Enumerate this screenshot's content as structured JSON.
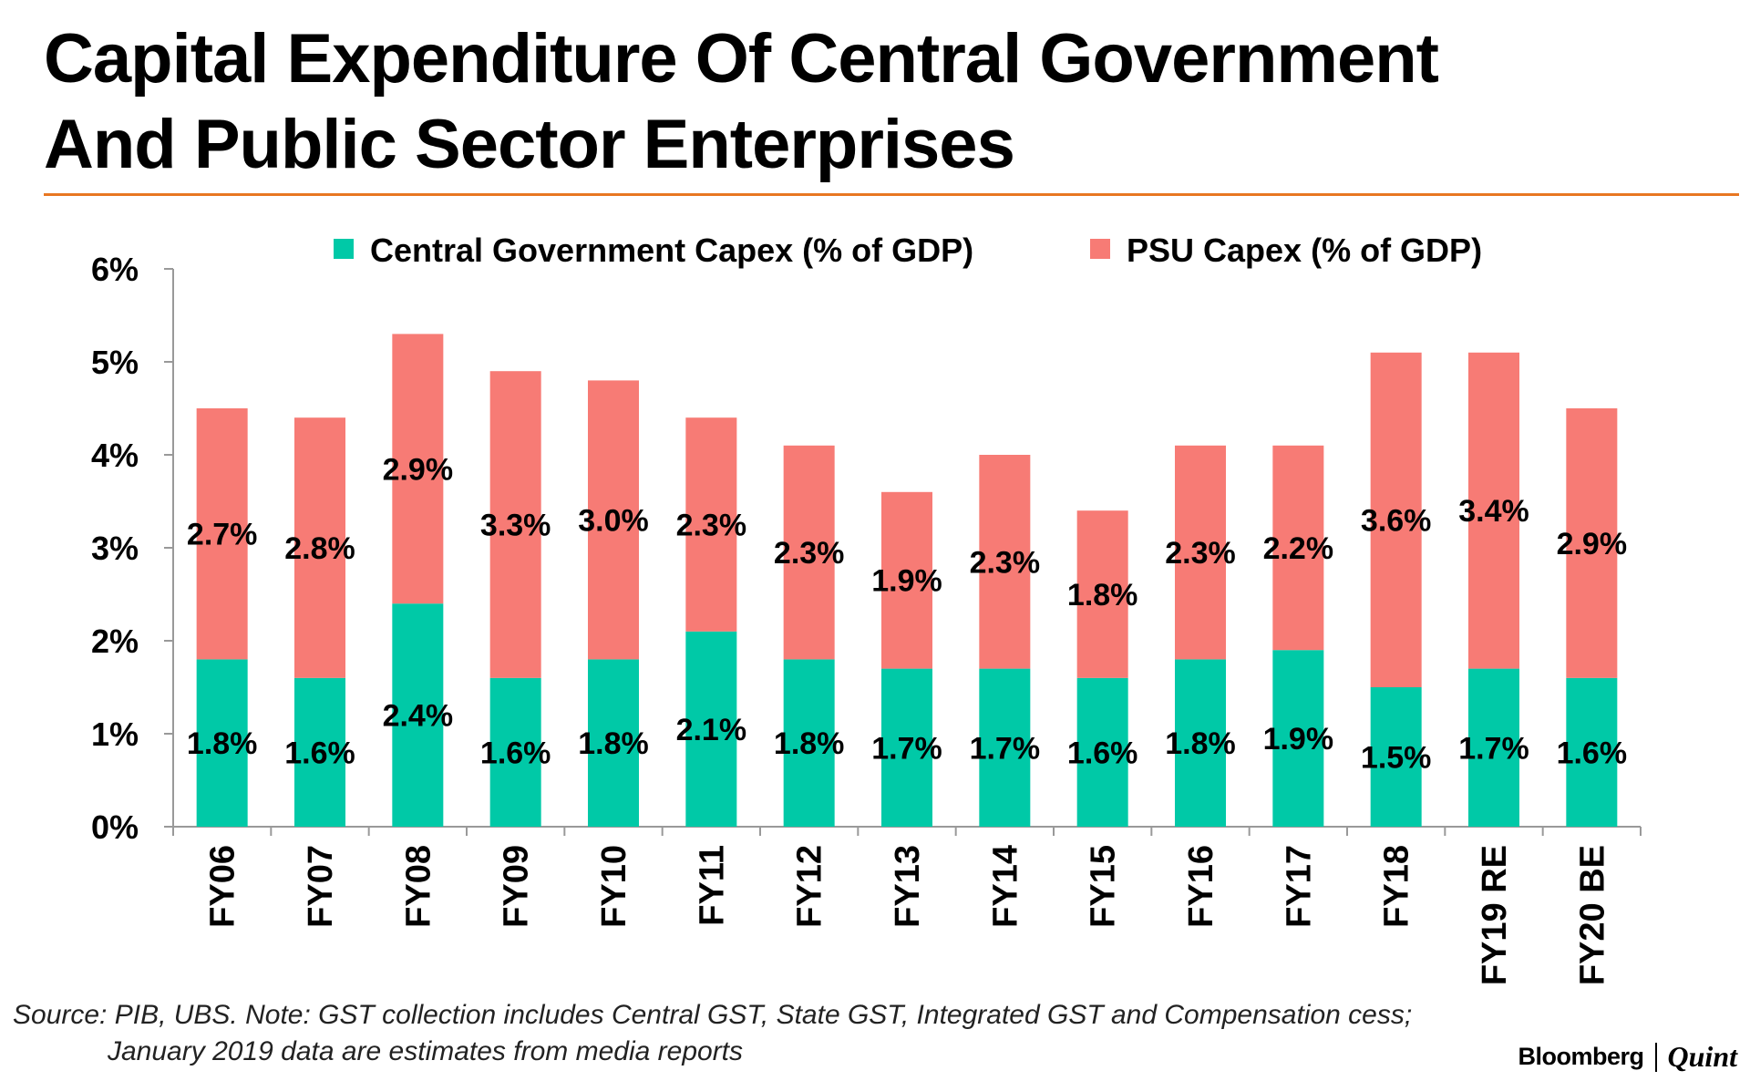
{
  "title": {
    "line1": "Capital Expenditure Of Central Government",
    "line2": "And Public Sector Enterprises"
  },
  "source": {
    "line1": "Source: PIB, UBS. Note: GST collection includes Central GST, State GST, Integrated GST and Compensation cess;",
    "line2": "January 2019 data are estimates from media reports"
  },
  "brand": {
    "name1": "Bloomberg",
    "name2": "Quint"
  },
  "colors": {
    "central": "#00c9a7",
    "psu": "#f77b75",
    "rule": "#e87722",
    "axis": "#999999"
  },
  "chart_data": {
    "type": "bar",
    "stacked": true,
    "title": "Capital Expenditure Of Central Government And Public Sector Enterprises",
    "xlabel": "",
    "ylabel": "",
    "ylim": [
      0,
      6
    ],
    "yticks": [
      0,
      1,
      2,
      3,
      4,
      5,
      6
    ],
    "ytick_labels": [
      "0%",
      "1%",
      "2%",
      "3%",
      "4%",
      "5%",
      "6%"
    ],
    "legend_position": "top",
    "grid": false,
    "categories": [
      "FY06",
      "FY07",
      "FY08",
      "FY09",
      "FY10",
      "FY11",
      "FY12",
      "FY13",
      "FY14",
      "FY15",
      "FY16",
      "FY17",
      "FY18",
      "FY19 RE",
      "FY20 BE"
    ],
    "series": [
      {
        "name": "Central Government Capex (% of GDP)",
        "color": "#00c9a7",
        "values": [
          1.8,
          1.6,
          2.4,
          1.6,
          1.8,
          2.1,
          1.8,
          1.7,
          1.7,
          1.6,
          1.8,
          1.9,
          1.5,
          1.7,
          1.6
        ],
        "labels": [
          "1.8%",
          "1.6%",
          "2.4%",
          "1.6%",
          "1.8%",
          "2.1%",
          "1.8%",
          "1.7%",
          "1.7%",
          "1.6%",
          "1.8%",
          "1.9%",
          "1.5%",
          "1.7%",
          "1.6%"
        ]
      },
      {
        "name": "PSU Capex (% of GDP)",
        "color": "#f77b75",
        "values": [
          2.7,
          2.8,
          2.9,
          3.3,
          3.0,
          2.3,
          2.3,
          1.9,
          2.3,
          1.8,
          2.3,
          2.2,
          3.6,
          3.4,
          2.9
        ],
        "labels": [
          "2.7%",
          "2.8%",
          "2.9%",
          "3.3%",
          "3.0%",
          "2.3%",
          "2.3%",
          "1.9%",
          "2.3%",
          "1.8%",
          "2.3%",
          "2.2%",
          "3.6%",
          "3.4%",
          "2.9%"
        ]
      }
    ]
  }
}
